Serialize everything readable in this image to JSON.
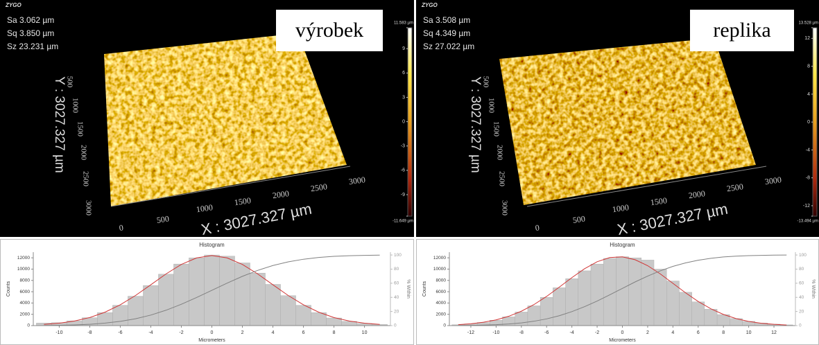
{
  "panels": [
    {
      "logo": "ZYGO",
      "stats": [
        "Sa 3.062 µm",
        "Sq 3.850 µm",
        "Sz 23.231 µm"
      ],
      "label": "výrobek",
      "colorbar": {
        "lim": [
          -11.649,
          11.583
        ],
        "ticks": [
          {
            "value": 11.583,
            "label": "11.583 µm"
          },
          9,
          6,
          3,
          0,
          -3,
          -6,
          -9,
          {
            "value": -11.649,
            "label": "-11.649 µm"
          }
        ]
      },
      "x_ticks": [
        0,
        500,
        1000,
        1500,
        2000,
        2500,
        3000
      ],
      "y_ticks": [
        500,
        1000,
        1500,
        2000,
        2500,
        3000
      ],
      "x_label": "X : 3027.327 µm",
      "y_label": "Y : 3027.327 µm"
    },
    {
      "logo": "ZYGO",
      "stats": [
        "Sa 3.508 µm",
        "Sq 4.349 µm",
        "Sz 27.022 µm"
      ],
      "label": "replika",
      "colorbar": {
        "lim": [
          -13.494,
          13.528
        ],
        "ticks": [
          {
            "value": 13.528,
            "label": "13.528 µm"
          },
          12,
          8,
          4,
          0,
          -4,
          -8,
          -12,
          {
            "value": -13.494,
            "label": "-13.494 µm"
          }
        ]
      },
      "x_ticks": [
        0,
        500,
        1000,
        1500,
        2000,
        2500,
        3000
      ],
      "y_ticks": [
        500,
        1000,
        1500,
        2000,
        2500,
        3000
      ],
      "x_label": "X : 3027.327 µm",
      "y_label": "Y : 3027.327 µm"
    }
  ],
  "chart_data": [
    {
      "type": "histogram",
      "title": "Histogram",
      "x_label": "Micrometers",
      "y_label": "Counts",
      "y2_label": "% Within",
      "bins": [
        -11.5,
        -10.5,
        -9.5,
        -8.5,
        -7.5,
        -6.5,
        -5.5,
        -4.5,
        -3.5,
        -2.5,
        -1.5,
        -0.5,
        0.5,
        1.5,
        2.5,
        3.5,
        4.5,
        5.5,
        6.5,
        7.5,
        8.5,
        9.5,
        10.5,
        11.5
      ],
      "values": [
        450,
        520,
        850,
        1400,
        2300,
        3600,
        5200,
        7100,
        9100,
        10900,
        12000,
        12500,
        12300,
        11100,
        9300,
        7300,
        5300,
        3600,
        2300,
        1350,
        750,
        380,
        200
      ],
      "color": "#c8c8c8",
      "series": [
        {
          "color": "#d03535",
          "values": [
            209,
            425,
            807,
            1431,
            2375,
            3682,
            5336,
            7228,
            9154,
            10835,
            11988,
            12400,
            11988,
            10835,
            9154,
            7228,
            5336,
            3682,
            2375,
            1431,
            807,
            425,
            209
          ]
        },
        {
          "color": "#808080",
          "axis": "y2",
          "values": [
            0.2,
            0.5,
            1.0,
            1.9,
            3.5,
            6.0,
            9.7,
            14.9,
            21.8,
            30.2,
            39.8,
            50,
            60.2,
            69.8,
            78.2,
            85.1,
            90.3,
            94.0,
            96.5,
            98.1,
            99.0,
            99.5,
            99.8
          ]
        }
      ],
      "xlim": [
        -11.7,
        11.7
      ],
      "xticks": [
        -10,
        -8,
        -6,
        -4,
        -2,
        0,
        2,
        4,
        6,
        8,
        10
      ],
      "ylim": [
        0,
        13000
      ],
      "yticks": [
        0,
        2000,
        4000,
        6000,
        8000,
        10000,
        12000
      ],
      "y2lim": [
        0,
        104
      ],
      "y2ticks": [
        0,
        20,
        40,
        60,
        80,
        100
      ]
    },
    {
      "type": "histogram",
      "title": "Histogram",
      "x_label": "Micrometers",
      "y_label": "Counts",
      "y2_label": "% Within",
      "bins": [
        -13.5,
        -12.5,
        -11.5,
        -10.5,
        -9.5,
        -8.5,
        -7.5,
        -6.5,
        -5.5,
        -4.5,
        -3.5,
        -2.5,
        -1.5,
        -0.5,
        0.5,
        1.5,
        2.5,
        3.5,
        4.5,
        5.5,
        6.5,
        7.5,
        8.5,
        9.5,
        10.5,
        11.5,
        12.5,
        13.5
      ],
      "values": [
        150,
        300,
        550,
        950,
        1550,
        2400,
        3500,
        5000,
        6700,
        8300,
        9700,
        10900,
        11900,
        12200,
        12000,
        11600,
        10000,
        7900,
        5900,
        4200,
        2900,
        1950,
        1250,
        750,
        450,
        250,
        130
      ],
      "color": "#c8c8c8",
      "series": [
        {
          "color": "#d03535",
          "values": [
            172,
            328,
            593,
            1016,
            1651,
            2546,
            3726,
            5170,
            6805,
            8497,
            10063,
            11303,
            12044,
            12171,
            11667,
            10608,
            9150,
            7485,
            5808,
            4275,
            2984,
            1976,
            1241,
            739,
            417,
            224,
            114
          ]
        },
        {
          "color": "#808080",
          "axis": "y2",
          "values": [
            0.2,
            0.4,
            0.7,
            1.3,
            2.3,
            3.8,
            6.2,
            9.5,
            14.0,
            19.8,
            26.8,
            34.8,
            43.6,
            52.7,
            61.8,
            70.1,
            77.6,
            83.9,
            88.8,
            92.6,
            95.3,
            97.2,
            98.4,
            99.1,
            99.5,
            99.8,
            99.9
          ]
        }
      ],
      "xlim": [
        -13.7,
        13.7
      ],
      "xticks": [
        -12,
        -10,
        -8,
        -6,
        -4,
        -2,
        0,
        2,
        4,
        6,
        8,
        10,
        12
      ],
      "ylim": [
        0,
        13000
      ],
      "yticks": [
        0,
        2000,
        4000,
        6000,
        8000,
        10000,
        12000
      ],
      "y2lim": [
        0,
        104
      ],
      "y2ticks": [
        0,
        20,
        40,
        60,
        80,
        100
      ]
    }
  ]
}
